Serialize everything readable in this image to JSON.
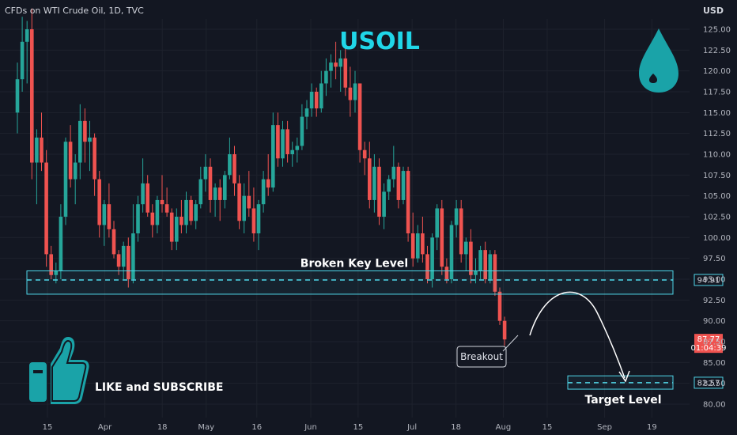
{
  "header": {
    "symbol_line": "CFDs on WTI Crude Oil, 1D, TVC",
    "currency": "USD"
  },
  "colors": {
    "bg": "#131722",
    "up": "#26a69a",
    "down": "#ef5350",
    "zone": "#4fd6e8",
    "title": "#20d6e8",
    "icon": "#1aa3a8"
  },
  "chart_data": {
    "type": "candlestick",
    "title": "USOIL",
    "ylim": [
      78,
      128
    ],
    "y_ticks": [
      80.0,
      82.5,
      85.0,
      87.5,
      90.0,
      92.5,
      95.0,
      97.5,
      100.0,
      102.5,
      105.0,
      107.5,
      110.0,
      112.5,
      115.0,
      117.5,
      120.0,
      122.5,
      125.0
    ],
    "x_ticks": [
      {
        "label": "15",
        "day": 0
      },
      {
        "label": "Apr",
        "day": 17
      },
      {
        "label": "18",
        "day": 34
      },
      {
        "label": "May",
        "day": 47
      },
      {
        "label": "16",
        "day": 62
      },
      {
        "label": "Jun",
        "day": 78
      },
      {
        "label": "15",
        "day": 92
      },
      {
        "label": "Jul",
        "day": 108
      },
      {
        "label": "18",
        "day": 121
      },
      {
        "label": "Aug",
        "day": 135
      },
      {
        "label": "15",
        "day": 148
      },
      {
        "label": "Sep",
        "day": 165
      },
      {
        "label": "19",
        "day": 179
      }
    ],
    "candles": [
      [
        115.0,
        121.0,
        112.5,
        119.0
      ],
      [
        119.0,
        126.5,
        117.5,
        123.5
      ],
      [
        123.5,
        126.0,
        118.5,
        125.0
      ],
      [
        125.0,
        127.5,
        107.0,
        109.0
      ],
      [
        109.0,
        113.0,
        104.0,
        112.0
      ],
      [
        112.0,
        115.0,
        108.0,
        109.0
      ],
      [
        109.0,
        110.5,
        96.5,
        98.0
      ],
      [
        98.0,
        99.0,
        95.0,
        95.5
      ],
      [
        95.5,
        97.0,
        94.5,
        96.0
      ],
      [
        96.0,
        104.0,
        95.0,
        102.5
      ],
      [
        102.5,
        112.0,
        101.5,
        111.5
      ],
      [
        111.5,
        113.5,
        106.0,
        107.0
      ],
      [
        107.0,
        110.0,
        104.0,
        109.0
      ],
      [
        109.0,
        116.0,
        107.0,
        114.0
      ],
      [
        114.0,
        115.5,
        109.0,
        111.5
      ],
      [
        111.5,
        114.0,
        108.0,
        112.0
      ],
      [
        112.0,
        112.5,
        105.0,
        107.0
      ],
      [
        107.0,
        108.0,
        100.0,
        101.5
      ],
      [
        101.5,
        104.5,
        99.0,
        104.0
      ],
      [
        104.0,
        106.5,
        100.0,
        101.0
      ],
      [
        101.0,
        102.0,
        97.5,
        98.0
      ],
      [
        98.0,
        98.5,
        95.5,
        96.5
      ],
      [
        96.5,
        99.5,
        95.0,
        99.0
      ],
      [
        99.0,
        100.0,
        94.0,
        95.0
      ],
      [
        95.0,
        104.0,
        94.5,
        100.5
      ],
      [
        100.5,
        105.0,
        99.5,
        104.0
      ],
      [
        104.0,
        109.5,
        103.0,
        106.5
      ],
      [
        106.5,
        107.5,
        102.5,
        103.0
      ],
      [
        103.0,
        104.0,
        100.0,
        101.5
      ],
      [
        101.5,
        105.0,
        100.5,
        104.5
      ],
      [
        104.5,
        107.5,
        103.0,
        104.0
      ],
      [
        104.0,
        106.0,
        102.5,
        103.0
      ],
      [
        103.0,
        103.5,
        98.5,
        99.5
      ],
      [
        99.5,
        103.5,
        98.5,
        102.5
      ],
      [
        102.5,
        104.5,
        100.5,
        101.5
      ],
      [
        101.5,
        105.5,
        100.5,
        104.5
      ],
      [
        104.5,
        105.0,
        101.5,
        102.0
      ],
      [
        102.0,
        104.5,
        101.0,
        104.0
      ],
      [
        104.0,
        108.5,
        103.5,
        107.0
      ],
      [
        107.0,
        110.0,
        105.5,
        108.5
      ],
      [
        108.5,
        109.5,
        103.0,
        104.5
      ],
      [
        104.5,
        106.5,
        102.5,
        106.0
      ],
      [
        106.0,
        107.0,
        102.0,
        104.5
      ],
      [
        104.5,
        108.0,
        103.5,
        107.5
      ],
      [
        107.5,
        112.0,
        107.0,
        110.0
      ],
      [
        110.0,
        111.0,
        105.0,
        106.5
      ],
      [
        106.5,
        107.5,
        101.0,
        102.0
      ],
      [
        102.0,
        106.5,
        100.5,
        105.0
      ],
      [
        105.0,
        108.0,
        102.5,
        103.5
      ],
      [
        103.5,
        106.0,
        99.5,
        100.5
      ],
      [
        100.5,
        104.5,
        98.5,
        104.0
      ],
      [
        104.0,
        108.0,
        103.0,
        107.0
      ],
      [
        107.0,
        110.0,
        105.0,
        106.0
      ],
      [
        106.0,
        115.0,
        105.5,
        113.5
      ],
      [
        113.5,
        115.0,
        108.5,
        109.5
      ],
      [
        109.5,
        114.0,
        108.5,
        113.0
      ],
      [
        113.0,
        114.0,
        109.0,
        110.0
      ],
      [
        110.0,
        111.5,
        108.5,
        110.5
      ],
      [
        110.5,
        112.0,
        109.0,
        111.0
      ],
      [
        111.0,
        116.0,
        110.5,
        114.5
      ],
      [
        114.5,
        116.5,
        113.0,
        115.5
      ],
      [
        115.5,
        118.5,
        114.5,
        117.5
      ],
      [
        117.5,
        118.0,
        114.5,
        115.5
      ],
      [
        115.5,
        120.0,
        115.0,
        118.5
      ],
      [
        118.5,
        121.5,
        117.0,
        120.0
      ],
      [
        120.0,
        122.0,
        118.0,
        121.0
      ],
      [
        121.0,
        123.5,
        119.0,
        120.5
      ],
      [
        120.5,
        122.5,
        117.5,
        121.5
      ],
      [
        121.5,
        123.0,
        117.0,
        118.0
      ],
      [
        118.0,
        120.5,
        114.5,
        116.5
      ],
      [
        116.5,
        120.0,
        115.0,
        118.5
      ],
      [
        118.5,
        118.5,
        109.0,
        110.5
      ],
      [
        110.5,
        111.5,
        107.5,
        109.5
      ],
      [
        109.5,
        111.5,
        103.5,
        104.5
      ],
      [
        104.5,
        110.0,
        103.0,
        108.5
      ],
      [
        108.5,
        109.5,
        101.5,
        102.5
      ],
      [
        102.5,
        106.5,
        101.0,
        105.5
      ],
      [
        105.5,
        107.5,
        104.5,
        107.0
      ],
      [
        107.0,
        111.0,
        106.0,
        108.5
      ],
      [
        108.5,
        109.0,
        103.5,
        104.5
      ],
      [
        104.5,
        108.5,
        104.0,
        108.0
      ],
      [
        108.0,
        108.5,
        99.5,
        100.5
      ],
      [
        100.5,
        103.0,
        96.5,
        97.5
      ],
      [
        97.5,
        101.5,
        97.0,
        100.5
      ],
      [
        100.5,
        102.5,
        97.0,
        98.0
      ],
      [
        98.0,
        99.0,
        94.5,
        95.0
      ],
      [
        95.0,
        100.5,
        94.0,
        100.0
      ],
      [
        100.0,
        104.0,
        98.5,
        103.5
      ],
      [
        103.5,
        104.5,
        95.5,
        96.5
      ],
      [
        96.5,
        97.5,
        94.5,
        95.0
      ],
      [
        95.0,
        102.0,
        94.5,
        101.5
      ],
      [
        101.5,
        104.5,
        100.0,
        103.5
      ],
      [
        103.5,
        104.5,
        97.0,
        98.0
      ],
      [
        98.0,
        100.0,
        96.0,
        99.5
      ],
      [
        99.5,
        101.0,
        94.5,
        95.5
      ],
      [
        95.5,
        97.5,
        94.5,
        96.0
      ],
      [
        96.0,
        99.0,
        95.0,
        98.5
      ],
      [
        98.5,
        99.5,
        94.5,
        95.0
      ],
      [
        95.0,
        98.5,
        94.5,
        98.0
      ],
      [
        98.0,
        98.5,
        93.0,
        93.5
      ],
      [
        93.5,
        94.0,
        89.5,
        90.0
      ],
      [
        90.0,
        90.5,
        87.0,
        87.77
      ]
    ],
    "annotations": {
      "broken_key_level": {
        "text": "Broken Key Level",
        "low": 93.2,
        "high": 96.0,
        "line": 94.91,
        "price_label": "94.91"
      },
      "target_level": {
        "text": "Target Level",
        "low": 81.8,
        "high": 83.4,
        "line": 82.57,
        "price_label": "82.57"
      },
      "breakout_label": "Breakout",
      "current_price": {
        "price": "87.77",
        "countdown": "01:04:39"
      }
    },
    "promo": "LIKE and SUBSCRIBE"
  }
}
